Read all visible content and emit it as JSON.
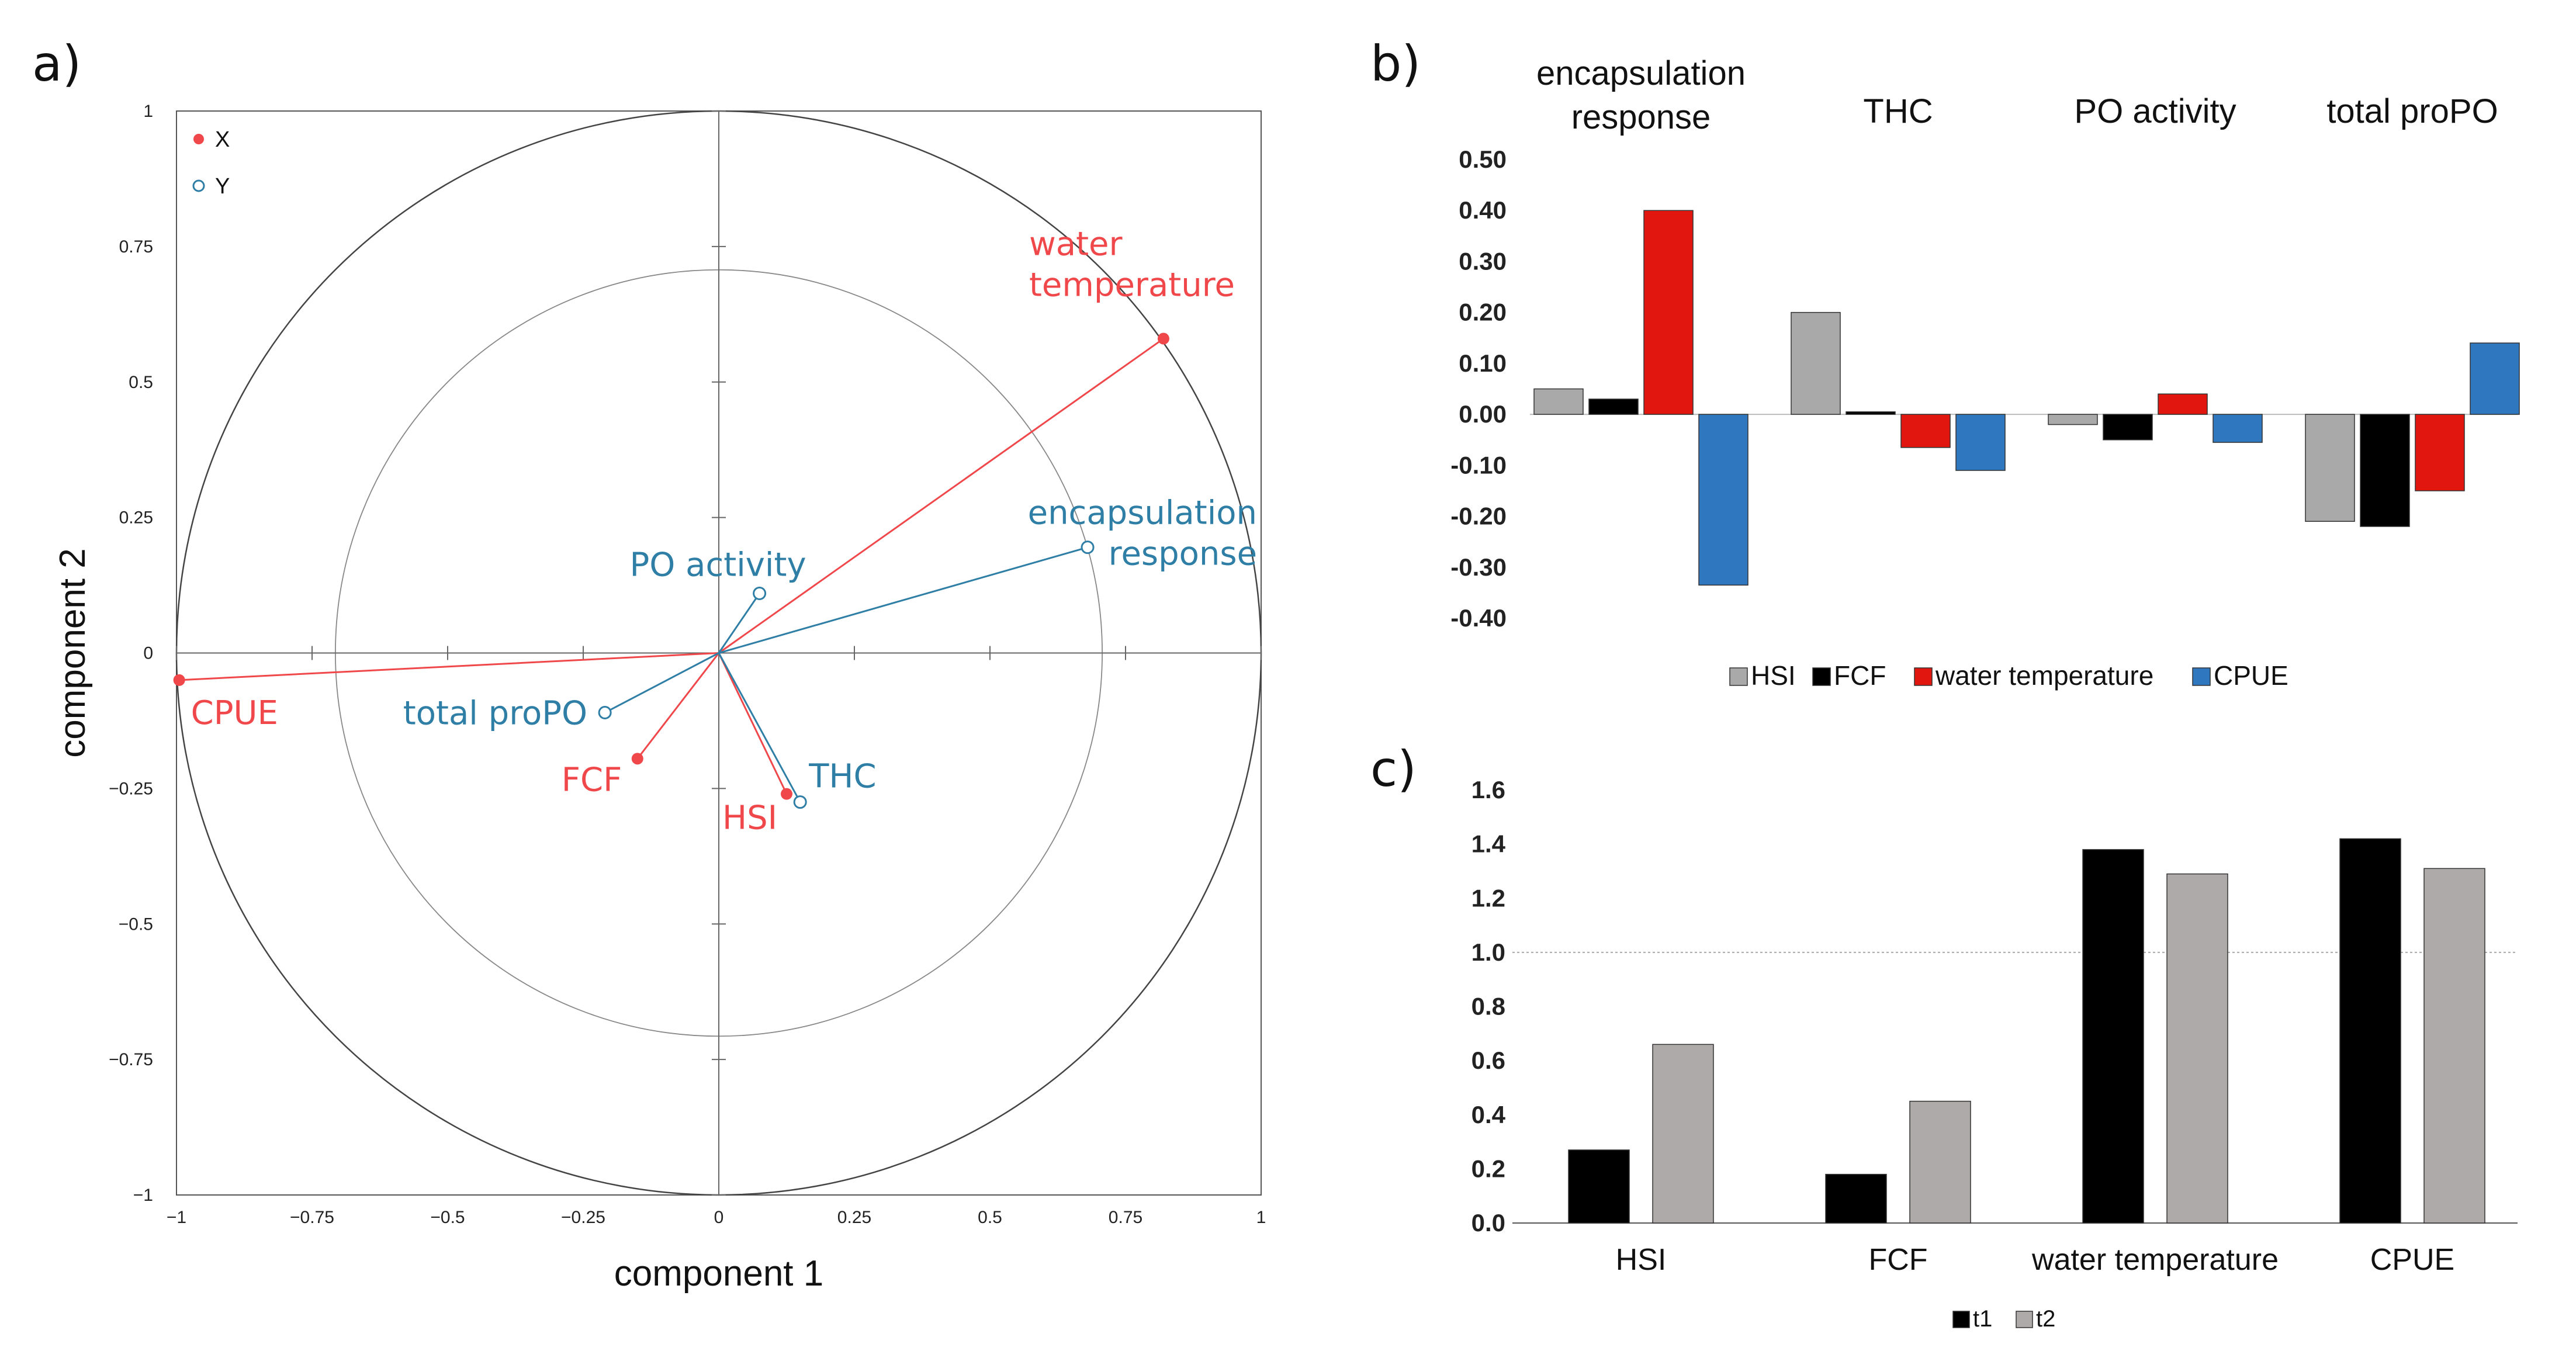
{
  "panel_labels": {
    "a": "a)",
    "b": "b)",
    "c": "c)"
  },
  "colors": {
    "x_red": "#f0474a",
    "y_blue": "#2e7ea6",
    "hsi_gray": "#a9a9a9",
    "fcf_black": "#000000",
    "water_red": "#e0160f",
    "cpue_blue": "#2f78c0",
    "t2_gray": "#aeaaaa"
  },
  "chart_data": [
    {
      "type": "scatter",
      "subtype": "correlation-loadings-biplot",
      "xlabel": "component 1",
      "ylabel": "component 2",
      "xlim": [
        -1,
        1
      ],
      "ylim": [
        -1,
        1
      ],
      "x_ticks": [
        "−1",
        "−0.75",
        "−0.5",
        "−0.25",
        "0",
        "0.25",
        "0.5",
        "0.75",
        "1"
      ],
      "y_ticks": [
        "1",
        "0.75",
        "0.5",
        "0.25",
        "0",
        "−0.25",
        "−0.5",
        "−0.75",
        "−1"
      ],
      "circles_radius": [
        1.0,
        0.707
      ],
      "legend": [
        {
          "name": "X",
          "marker": "filled",
          "color": "#f0474a"
        },
        {
          "name": "Y",
          "marker": "open",
          "color": "#2e7ea6"
        }
      ],
      "series": [
        {
          "name": "X",
          "points": [
            {
              "label_lines": [
                "water",
                "temperature"
              ],
              "x": 0.82,
              "y": 0.58
            },
            {
              "label_lines": [
                "CPUE"
              ],
              "x": -0.995,
              "y": -0.05
            },
            {
              "label_lines": [
                "FCF"
              ],
              "x": -0.15,
              "y": -0.195
            },
            {
              "label_lines": [
                "HSI"
              ],
              "x": 0.125,
              "y": -0.26
            }
          ]
        },
        {
          "name": "Y",
          "points": [
            {
              "label_lines": [
                "encapsulation",
                "response"
              ],
              "x": 0.68,
              "y": 0.195
            },
            {
              "label_lines": [
                "PO activity"
              ],
              "x": 0.075,
              "y": 0.11
            },
            {
              "label_lines": [
                "total proPO"
              ],
              "x": -0.21,
              "y": -0.11
            },
            {
              "label_lines": [
                "THC"
              ],
              "x": 0.15,
              "y": -0.275
            }
          ]
        }
      ]
    },
    {
      "type": "bar",
      "categories": [
        {
          "label_lines": [
            "encapsulation",
            "response"
          ]
        },
        {
          "label_lines": [
            "THC"
          ]
        },
        {
          "label_lines": [
            "PO activity"
          ]
        },
        {
          "label_lines": [
            "total proPO"
          ]
        }
      ],
      "ylim": [
        -0.4,
        0.5
      ],
      "y_ticks": [
        "0.50",
        "0.40",
        "0.30",
        "0.20",
        "0.10",
        "0.00",
        "-0.10",
        "-0.20",
        "-0.30",
        "-0.40"
      ],
      "series": [
        {
          "name": "HSI",
          "values": [
            0.05,
            0.2,
            -0.02,
            -0.21
          ]
        },
        {
          "name": "FCF",
          "values": [
            0.03,
            0.005,
            -0.05,
            -0.22
          ]
        },
        {
          "name": "water temperature",
          "values": [
            0.4,
            -0.065,
            0.04,
            -0.15
          ]
        },
        {
          "name": "CPUE",
          "values": [
            -0.335,
            -0.11,
            -0.055,
            0.14
          ]
        }
      ],
      "legend": [
        "HSI",
        "FCF",
        "water temperature",
        "CPUE"
      ]
    },
    {
      "type": "bar",
      "categories": [
        "HSI",
        "FCF",
        "water temperature",
        "CPUE"
      ],
      "ylim": [
        0,
        1.6
      ],
      "y_ticks": [
        "1.6",
        "1.4",
        "1.2",
        "1.0",
        "0.8",
        "0.6",
        "0.4",
        "0.2",
        "0.0"
      ],
      "reference_line": 1.0,
      "series": [
        {
          "name": "t1",
          "values": [
            0.27,
            0.18,
            1.38,
            1.42
          ]
        },
        {
          "name": "t2",
          "values": [
            0.66,
            0.45,
            1.29,
            1.31
          ]
        }
      ],
      "legend": [
        "t1",
        "t2"
      ]
    }
  ]
}
